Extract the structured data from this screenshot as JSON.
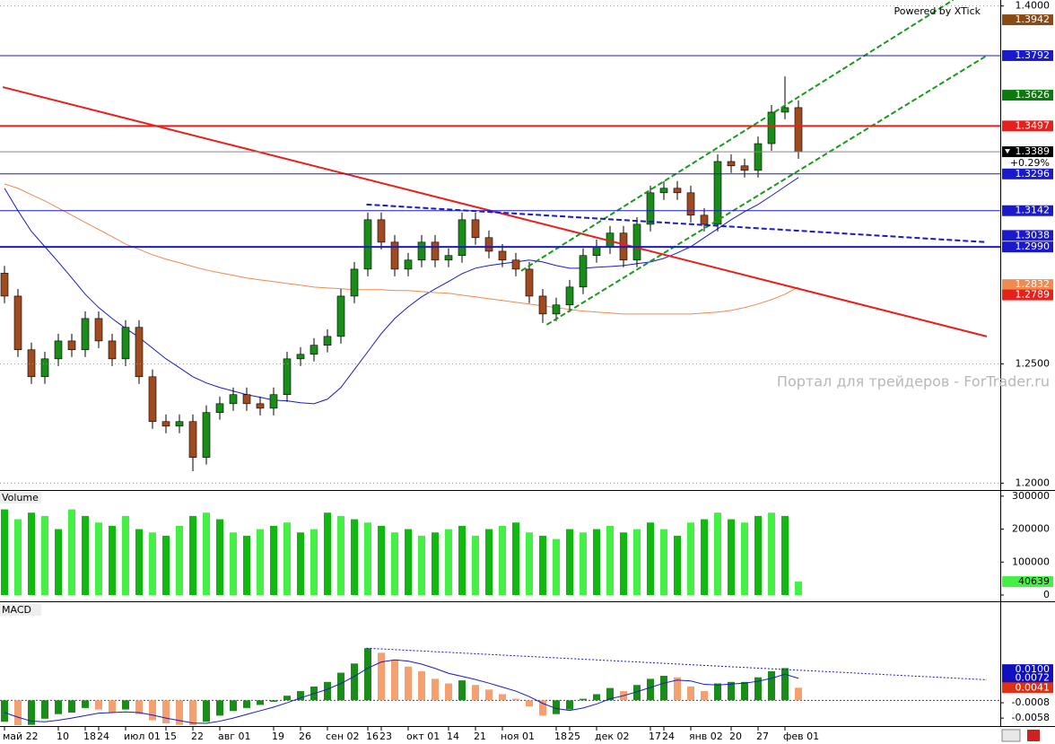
{
  "chart_data": [
    {
      "type": "candlestick",
      "credit": "Powered by XTick",
      "watermark": "Портал для трейдеров - ForTrader.ru",
      "change_label": "+0.29%",
      "categories": [
        "май 22",
        null,
        null,
        null,
        "10",
        null,
        "18",
        "24",
        null,
        "июл 01",
        null,
        null,
        "15",
        null,
        "22",
        null,
        "авг 01",
        null,
        null,
        null,
        "19",
        null,
        "26",
        null,
        "сен 02",
        null,
        null,
        "16",
        "23",
        null,
        "окт 01",
        null,
        null,
        "14",
        null,
        "21",
        null,
        "ноя 01",
        null,
        null,
        null,
        "18",
        "25",
        null,
        "дек 02",
        null,
        null,
        null,
        "17",
        "24",
        null,
        "янв 02",
        null,
        null,
        "20",
        null,
        "27",
        null,
        "фев 01",
        null
      ],
      "open": [
        1.288,
        1.2784,
        1.2559,
        1.2446,
        1.2521,
        1.2596,
        1.2559,
        1.269,
        1.2596,
        1.2521,
        1.2653,
        1.2446,
        1.2258,
        1.2239,
        1.2258,
        1.2108,
        1.2296,
        1.2333,
        1.2371,
        1.2333,
        1.2314,
        1.2371,
        1.2521,
        1.254,
        1.2578,
        1.2615,
        1.2784,
        1.2897,
        1.3104,
        1.301,
        1.2897,
        1.2935,
        1.301,
        1.2935,
        1.2954,
        1.3104,
        1.3029,
        1.2972,
        1.2935,
        1.2897,
        1.2784,
        1.2709,
        1.2747,
        1.2822,
        1.2954,
        1.2991,
        1.3048,
        1.2935,
        1.3085,
        1.3217,
        1.3236,
        1.3217,
        1.3123,
        1.3085,
        1.3348,
        1.333,
        1.3311,
        1.3423,
        1.3555,
        1.3574
      ],
      "high": [
        1.291,
        1.2814,
        1.2589,
        1.2551,
        1.2626,
        1.2626,
        1.272,
        1.272,
        1.2626,
        1.2683,
        1.2683,
        1.2476,
        1.2288,
        1.2288,
        1.2288,
        1.2326,
        1.2363,
        1.2401,
        1.2401,
        1.2363,
        1.2401,
        1.2551,
        1.257,
        1.2608,
        1.2645,
        1.2814,
        1.2927,
        1.3134,
        1.3134,
        1.304,
        1.2965,
        1.304,
        1.304,
        1.2984,
        1.3134,
        1.3134,
        1.3059,
        1.3002,
        1.2965,
        1.2927,
        1.2814,
        1.2777,
        1.2852,
        1.2984,
        1.3021,
        1.3078,
        1.3078,
        1.3115,
        1.3247,
        1.3266,
        1.3266,
        1.3247,
        1.3153,
        1.3378,
        1.3378,
        1.336,
        1.3453,
        1.3585,
        1.3705,
        1.3604
      ],
      "low": [
        1.2754,
        1.2529,
        1.2416,
        1.2416,
        1.2491,
        1.2529,
        1.2529,
        1.2566,
        1.2491,
        1.2491,
        1.2416,
        1.2228,
        1.2209,
        1.2209,
        1.205,
        1.2078,
        1.2266,
        1.2303,
        1.2303,
        1.2284,
        1.2284,
        1.2341,
        1.2491,
        1.251,
        1.2548,
        1.2585,
        1.2754,
        1.2867,
        1.298,
        1.2867,
        1.2867,
        1.2905,
        1.2905,
        1.2905,
        1.2924,
        1.2999,
        1.2942,
        1.2905,
        1.2867,
        1.2754,
        1.2672,
        1.2679,
        1.2717,
        1.2792,
        1.2924,
        1.2961,
        1.2905,
        1.2905,
        1.3055,
        1.3187,
        1.3187,
        1.3093,
        1.3055,
        1.3055,
        1.33,
        1.3281,
        1.3281,
        1.3393,
        1.3525,
        1.3359
      ],
      "close": [
        1.2784,
        1.2559,
        1.2446,
        1.2521,
        1.2596,
        1.2559,
        1.269,
        1.2596,
        1.2521,
        1.2653,
        1.2446,
        1.2258,
        1.2239,
        1.2258,
        1.2108,
        1.2296,
        1.2333,
        1.2371,
        1.2333,
        1.2314,
        1.2371,
        1.2521,
        1.254,
        1.2578,
        1.2615,
        1.2784,
        1.2897,
        1.3104,
        1.301,
        1.2897,
        1.2935,
        1.301,
        1.2935,
        1.2954,
        1.3104,
        1.3029,
        1.2972,
        1.2935,
        1.2897,
        1.2784,
        1.2709,
        1.2747,
        1.2822,
        1.2954,
        1.2991,
        1.3048,
        1.2935,
        1.3085,
        1.3217,
        1.3236,
        1.3217,
        1.3123,
        1.3085,
        1.3348,
        1.333,
        1.3311,
        1.3423,
        1.3555,
        1.3574,
        1.3389
      ],
      "up_color": "#1a8c1a",
      "down_color": "#a04a20",
      "lines": [
        {
          "color": "#1a1acc",
          "values": [
            1.3236,
            1.3142,
            1.3055,
            1.2991,
            1.2927,
            1.286,
            1.2792,
            1.2736,
            1.269,
            1.2649,
            1.2611,
            1.2566,
            1.2521,
            1.2484,
            1.2446,
            1.242,
            1.2401,
            1.2386,
            1.2371,
            1.236,
            1.2348,
            1.2345,
            1.2337,
            1.2333,
            1.2352,
            1.2401,
            1.2476,
            1.2551,
            1.2627,
            1.269,
            1.2739,
            1.2781,
            1.2814,
            1.2845,
            1.2878,
            1.2901,
            1.2912,
            1.292,
            1.2927,
            1.2935,
            1.2927,
            1.2912,
            1.2901,
            1.2901,
            1.2905,
            1.2908,
            1.2912,
            1.292,
            1.2927,
            1.2942,
            1.2965,
            1.2991,
            1.3029,
            1.3066,
            1.3104,
            1.3138,
            1.3168,
            1.3205,
            1.3243,
            1.3281
          ]
        },
        {
          "color": "#f08a50",
          "values": [
            1.3254,
            1.3236,
            1.3209,
            1.3183,
            1.3153,
            1.3123,
            1.3093,
            1.3063,
            1.3033,
            1.3002,
            1.298,
            1.2957,
            1.2939,
            1.2924,
            1.2908,
            1.2893,
            1.2882,
            1.2871,
            1.286,
            1.2852,
            1.2845,
            1.2837,
            1.283,
            1.2822,
            1.2818,
            1.2815,
            1.2811,
            1.2811,
            1.2811,
            1.2807,
            1.2807,
            1.2803,
            1.2799,
            1.2796,
            1.2788,
            1.2781,
            1.2773,
            1.2766,
            1.2758,
            1.2751,
            1.2743,
            1.2736,
            1.2728,
            1.2721,
            1.2717,
            1.2713,
            1.2709,
            1.2709,
            1.2709,
            1.2709,
            1.2709,
            1.2709,
            1.2713,
            1.2717,
            1.2724,
            1.2736,
            1.2751,
            1.2769,
            1.2792,
            1.2822
          ]
        }
      ],
      "trendlines": [
        {
          "x": [
            -0.13,
            73
          ],
          "y": [
            1.366,
            1.2615
          ],
          "color": "#e8201c",
          "dash": false,
          "width": 2
        },
        {
          "x": [
            38.4,
            70.5
          ],
          "y": [
            1.289,
            1.4025
          ],
          "color": "#1a9a1a",
          "dash": true,
          "width": 2
        },
        {
          "x": [
            40.3,
            73
          ],
          "y": [
            1.2664,
            1.3792
          ],
          "color": "#1a9a1a",
          "dash": true,
          "width": 2
        },
        {
          "x": [
            26.9,
            73
          ],
          "y": [
            1.3168,
            1.301
          ],
          "color": "#1a1acc",
          "dash": true,
          "width": 2
        }
      ],
      "levels": [
        {
          "value": 1.3942,
          "label": "1.3942",
          "color": "#8b4a14",
          "line": false
        },
        {
          "value": 1.3792,
          "label": "1.3792",
          "color": "#1a1acc",
          "line": true,
          "width": 1
        },
        {
          "value": 1.3626,
          "label": "1.3626",
          "color": "#0a7a0a",
          "line": false
        },
        {
          "value": 1.3497,
          "label": "1.3497",
          "color": "#e8201c",
          "line": true,
          "width": 2
        },
        {
          "value": 1.3389,
          "label": "1.3389",
          "color": "#000000",
          "line": true,
          "width": 1,
          "current": true
        },
        {
          "value": 1.3296,
          "label": "1.3296",
          "color": "#1a1acc",
          "line": true,
          "width": 1
        },
        {
          "value": 1.3142,
          "label": "1.3142",
          "color": "#1a1acc",
          "line": true,
          "width": 1
        },
        {
          "value": 1.3038,
          "label": "1.3038",
          "color": "#1a1acc",
          "line": false
        },
        {
          "value": 1.299,
          "label": "1.2990",
          "color": "#1a1acc",
          "line": true,
          "width": 2
        },
        {
          "value": 1.2832,
          "label": "1.2832",
          "color": "#f08a50",
          "line": false
        },
        {
          "value": 1.2789,
          "label": "1.2789",
          "color": "#e8201c",
          "line": false
        }
      ],
      "ylim": [
        1.1975,
        1.4025
      ],
      "yticks": [
        {
          "value": 1.2,
          "label": "1.2000"
        },
        {
          "value": 1.25,
          "label": "1.2500"
        },
        {
          "value": 1.4,
          "label": "1.4000"
        }
      ],
      "grid": true
    },
    {
      "type": "bar",
      "title": "Volume",
      "values": [
        260000,
        230000,
        250000,
        240000,
        200000,
        260000,
        240000,
        220000,
        210000,
        240000,
        200000,
        190000,
        180000,
        210000,
        240000,
        250000,
        230000,
        190000,
        180000,
        200000,
        210000,
        220000,
        190000,
        200000,
        250000,
        240000,
        230000,
        220000,
        210000,
        190000,
        200000,
        180000,
        190000,
        200000,
        210000,
        180000,
        200000,
        210000,
        220000,
        190000,
        180000,
        170000,
        200000,
        190000,
        200000,
        210000,
        190000,
        200000,
        220000,
        200000,
        180000,
        220000,
        230000,
        250000,
        230000,
        220000,
        240000,
        250000,
        240000,
        40639
      ],
      "colors": [
        "#10b810",
        "#44f044"
      ],
      "last_box_color": "#44f044",
      "ylim": [
        -13600,
        316000
      ],
      "yticks": [
        0,
        100000,
        200000,
        300000
      ]
    },
    {
      "type": "macd",
      "title": "MACD",
      "values": [
        -0.007,
        -0.0085,
        -0.008,
        -0.006,
        -0.0045,
        -0.004,
        -0.0025,
        -0.003,
        -0.004,
        -0.003,
        -0.0045,
        -0.0065,
        -0.0075,
        -0.008,
        -0.0085,
        -0.007,
        -0.005,
        -0.0035,
        -0.0025,
        -0.0015,
        -0.0005,
        0.0015,
        0.003,
        0.0045,
        0.006,
        0.009,
        0.012,
        0.017,
        0.0155,
        0.013,
        0.011,
        0.0095,
        0.007,
        0.0055,
        0.0065,
        0.005,
        0.0035,
        0.002,
        0.0005,
        -0.002,
        -0.005,
        -0.0045,
        -0.003,
        0.0005,
        0.002,
        0.004,
        0.003,
        0.005,
        0.007,
        0.008,
        0.0075,
        0.0045,
        0.003,
        0.0055,
        0.006,
        0.006,
        0.0075,
        0.0095,
        0.0105,
        0.0041
      ],
      "rise_color": "#1a8c1a",
      "fall_color": "#f4a070",
      "signal": {
        "color": "#1a1acc",
        "values": [
          -0.004,
          -0.0055,
          -0.0068,
          -0.007,
          -0.0065,
          -0.0058,
          -0.005,
          -0.0042,
          -0.004,
          -0.0038,
          -0.004,
          -0.0048,
          -0.0058,
          -0.0066,
          -0.0074,
          -0.0075,
          -0.0068,
          -0.0058,
          -0.0046,
          -0.0034,
          -0.0022,
          -0.0008,
          0.0008,
          0.0022,
          0.0036,
          0.0055,
          0.0078,
          0.0105,
          0.0125,
          0.0132,
          0.0128,
          0.0118,
          0.0104,
          0.0088,
          0.0078,
          0.0068,
          0.0056,
          0.0043,
          0.003,
          0.0012,
          -0.001,
          -0.0027,
          -0.0033,
          -0.0025,
          -0.0012,
          0.0005,
          0.0015,
          0.0028,
          0.0042,
          0.0056,
          0.0066,
          0.0063,
          0.0052,
          0.005,
          0.0053,
          0.0056,
          0.0062,
          0.0072,
          0.0085,
          0.0072
        ]
      },
      "trendlines": [
        {
          "x": [
            26.9,
            73
          ],
          "y": [
            0.017,
            0.0067
          ],
          "color": "#1a1acc",
          "dash": true,
          "width": 1
        }
      ],
      "levels": [
        {
          "value": 0.01,
          "label": "0.0100",
          "color": "#1010c0",
          "line": false
        },
        {
          "value": 0.0072,
          "label": "0.0072",
          "color": "#1010c0",
          "line": false
        },
        {
          "value": 0.0041,
          "label": "0.0041",
          "color": "#e03010",
          "line": false
        }
      ],
      "ylim": [
        -0.0081,
        0.0317
      ],
      "yticks": [
        {
          "value": -0.0058,
          "label": "-0.0058"
        },
        {
          "value": -0.0008,
          "label": "-0.0008"
        }
      ],
      "zero_line": true
    }
  ]
}
